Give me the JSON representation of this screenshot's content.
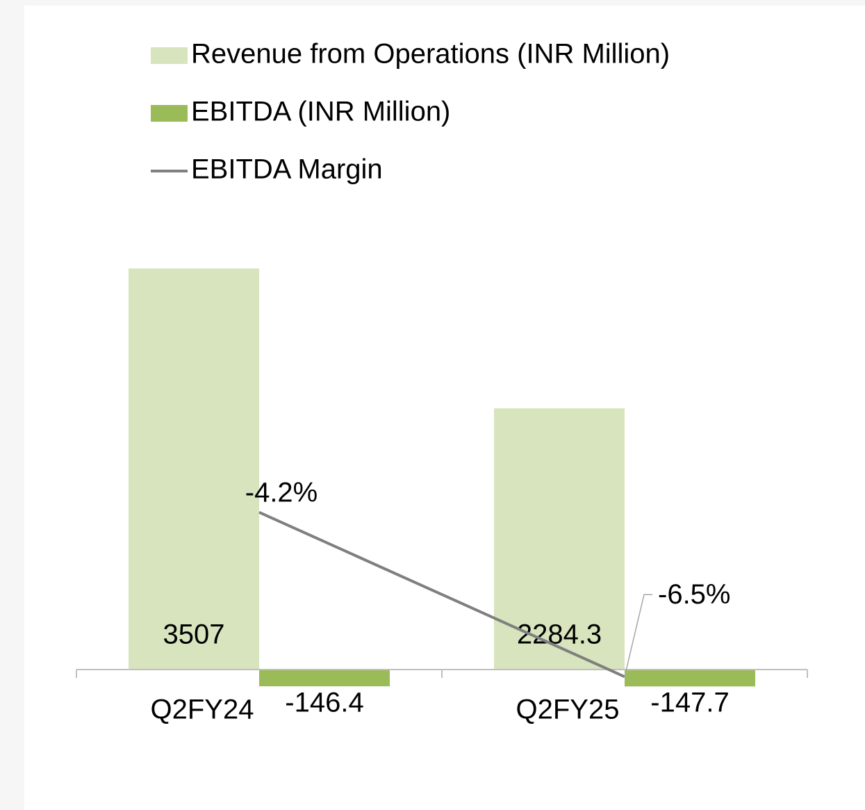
{
  "chart_data": {
    "type": "bar",
    "categories": [
      "Q2FY24",
      "Q2FY25"
    ],
    "series": [
      {
        "name": "Revenue from Operations (INR Million)",
        "type": "bar",
        "color": "#d7e4bd",
        "values": [
          3507,
          2284.3
        ]
      },
      {
        "name": "EBITDA (INR Million)",
        "type": "bar",
        "color": "#9bbb59",
        "values": [
          -146.4,
          -147.7
        ]
      },
      {
        "name": "EBITDA Margin",
        "type": "line",
        "axis": "y2",
        "color": "#7f7f7f",
        "values": [
          -4.2,
          -6.5
        ],
        "value_labels": [
          "-4.2%",
          "-6.5%"
        ]
      }
    ],
    "ylim": [
      -1000,
      4000
    ],
    "y2lim": [
      -8,
      0
    ],
    "grid": false,
    "legend": "top"
  }
}
